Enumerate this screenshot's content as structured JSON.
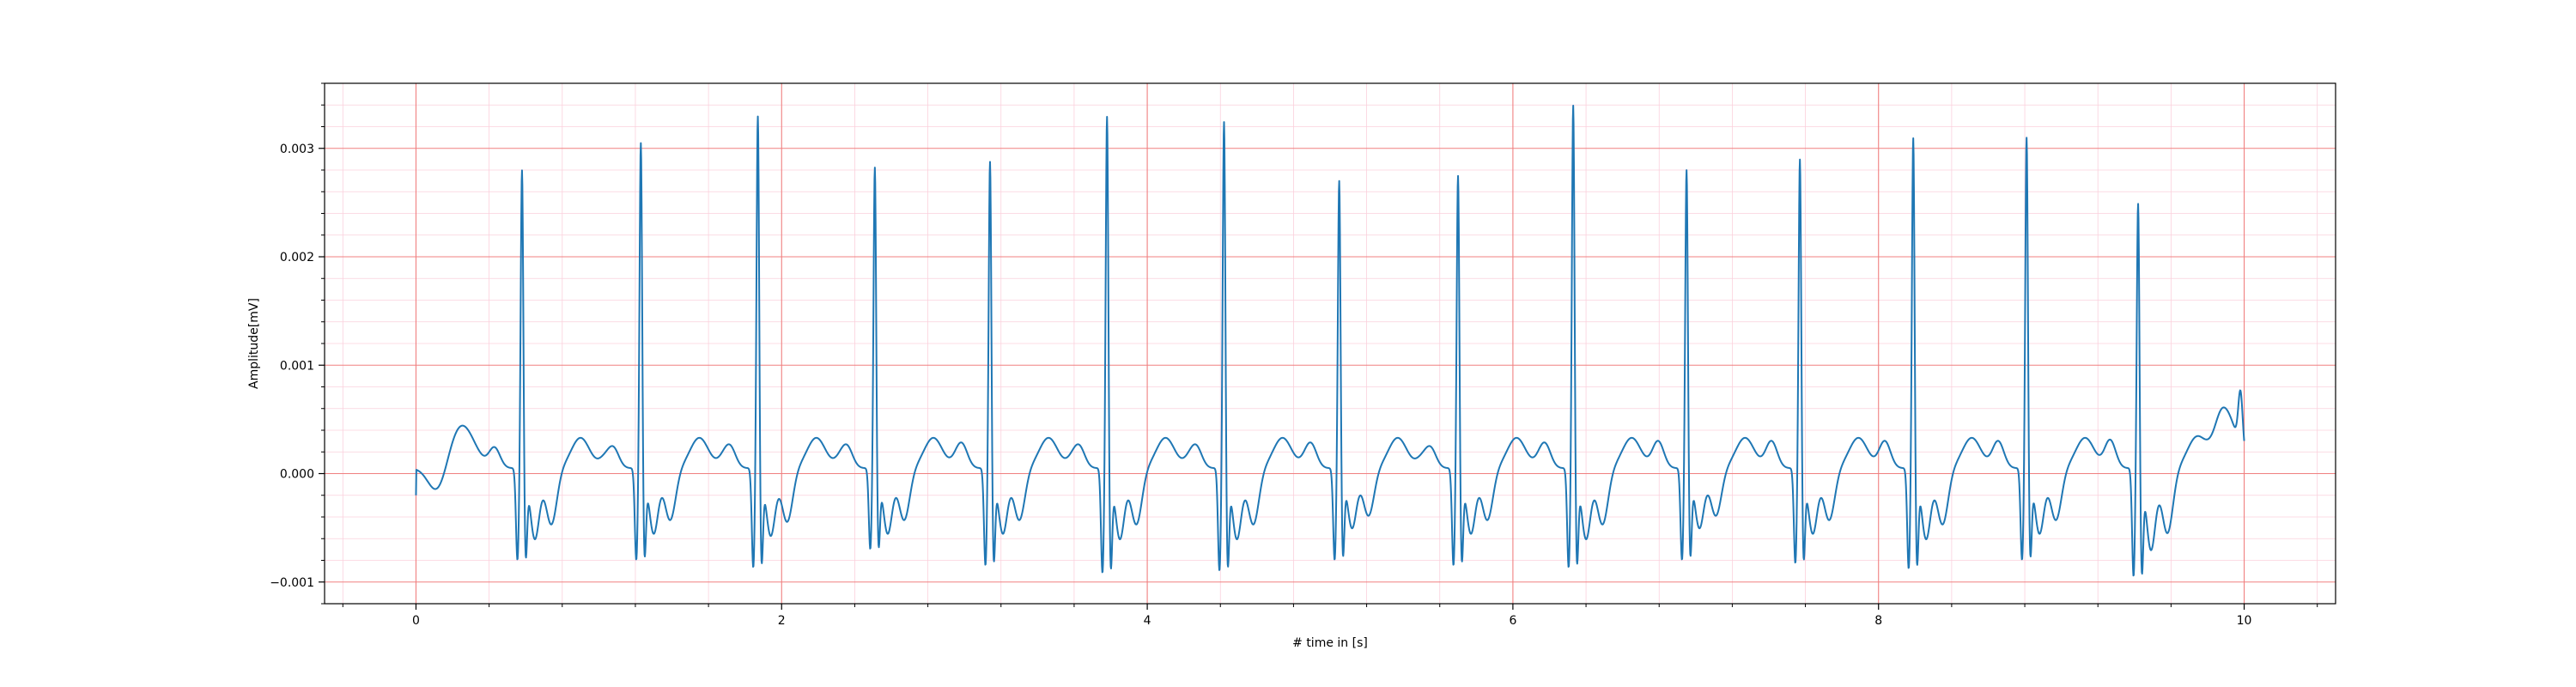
{
  "chart_data": {
    "type": "line",
    "title": "",
    "xlabel": "# time in [s]",
    "ylabel": "Amplitude[mV]",
    "xlim": [
      -0.5,
      10.5
    ],
    "ylim": [
      -0.0012,
      0.0036
    ],
    "xticks": [
      0,
      2,
      4,
      6,
      8,
      10
    ],
    "xtick_labels": [
      "0",
      "2",
      "4",
      "6",
      "8",
      "10"
    ],
    "yticks": [
      -0.001,
      0.0,
      0.001,
      0.002,
      0.003
    ],
    "ytick_labels": [
      "−0.001",
      "0.000",
      "0.001",
      "0.002",
      "0.003"
    ],
    "grid": {
      "major": true,
      "minor": true,
      "major_color": "#f08080",
      "minor_color": "#fbd0dc"
    },
    "series": [
      {
        "color": "#1f77b4",
        "sample_rate_hz": 100,
        "beats": [
          {
            "t": 0.58,
            "peak": 0.0028,
            "q": -0.00085,
            "s": -0.00065,
            "base": 5e-05
          },
          {
            "t": 1.23,
            "peak": 0.00305,
            "q": -0.00085,
            "s": -0.0006,
            "base": 5e-05
          },
          {
            "t": 1.87,
            "peak": 0.0033,
            "q": -0.00092,
            "s": -0.00062,
            "base": 5e-05
          },
          {
            "t": 2.51,
            "peak": 0.00282,
            "q": -0.00075,
            "s": -0.0006,
            "base": 5e-05
          },
          {
            "t": 3.14,
            "peak": 0.00288,
            "q": -0.0009,
            "s": -0.0006,
            "base": 5e-05
          },
          {
            "t": 3.78,
            "peak": 0.0033,
            "q": -0.00097,
            "s": -0.00065,
            "base": 5e-05
          },
          {
            "t": 4.42,
            "peak": 0.00325,
            "q": -0.00095,
            "s": -0.00065,
            "base": 5e-05
          },
          {
            "t": 5.05,
            "peak": 0.0027,
            "q": -0.00085,
            "s": -0.00055,
            "base": 5e-05
          },
          {
            "t": 5.7,
            "peak": 0.00275,
            "q": -0.0009,
            "s": -0.0006,
            "base": 5e-05
          },
          {
            "t": 6.33,
            "peak": 0.0034,
            "q": -0.00092,
            "s": -0.00065,
            "base": 5e-05
          },
          {
            "t": 6.95,
            "peak": 0.0028,
            "q": -0.00085,
            "s": -0.00055,
            "base": 5e-05
          },
          {
            "t": 7.57,
            "peak": 0.0029,
            "q": -0.00088,
            "s": -0.0006,
            "base": 5e-05
          },
          {
            "t": 8.19,
            "peak": 0.0031,
            "q": -0.00093,
            "s": -0.00065,
            "base": 5e-05
          },
          {
            "t": 8.81,
            "peak": 0.0031,
            "q": -0.00085,
            "s": -0.0006,
            "base": 5e-05
          },
          {
            "t": 9.42,
            "peak": 0.0025,
            "q": -0.001,
            "s": -0.00075,
            "base": 5e-05
          }
        ],
        "start": {
          "t": 0.0,
          "y": -0.0002
        },
        "end": {
          "t": 10.0,
          "y": 0.0002
        },
        "end_spike": {
          "t": 9.98,
          "y": 0.00085
        }
      }
    ]
  }
}
